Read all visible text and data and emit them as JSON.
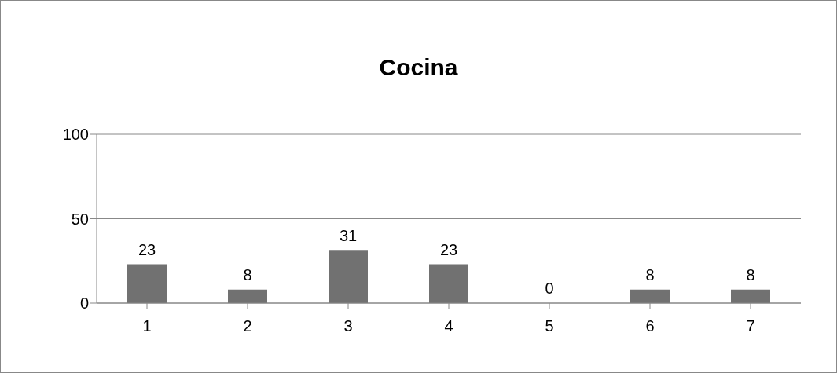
{
  "chart_data": {
    "type": "bar",
    "title": "Cocina",
    "categories": [
      "1",
      "2",
      "3",
      "4",
      "5",
      "6",
      "7"
    ],
    "values": [
      23,
      8,
      31,
      23,
      0,
      8,
      8
    ],
    "color": "#717171",
    "ylim": [
      0,
      100
    ],
    "yticks": [
      0,
      50,
      100
    ],
    "grid": "y",
    "data_labels": true
  }
}
